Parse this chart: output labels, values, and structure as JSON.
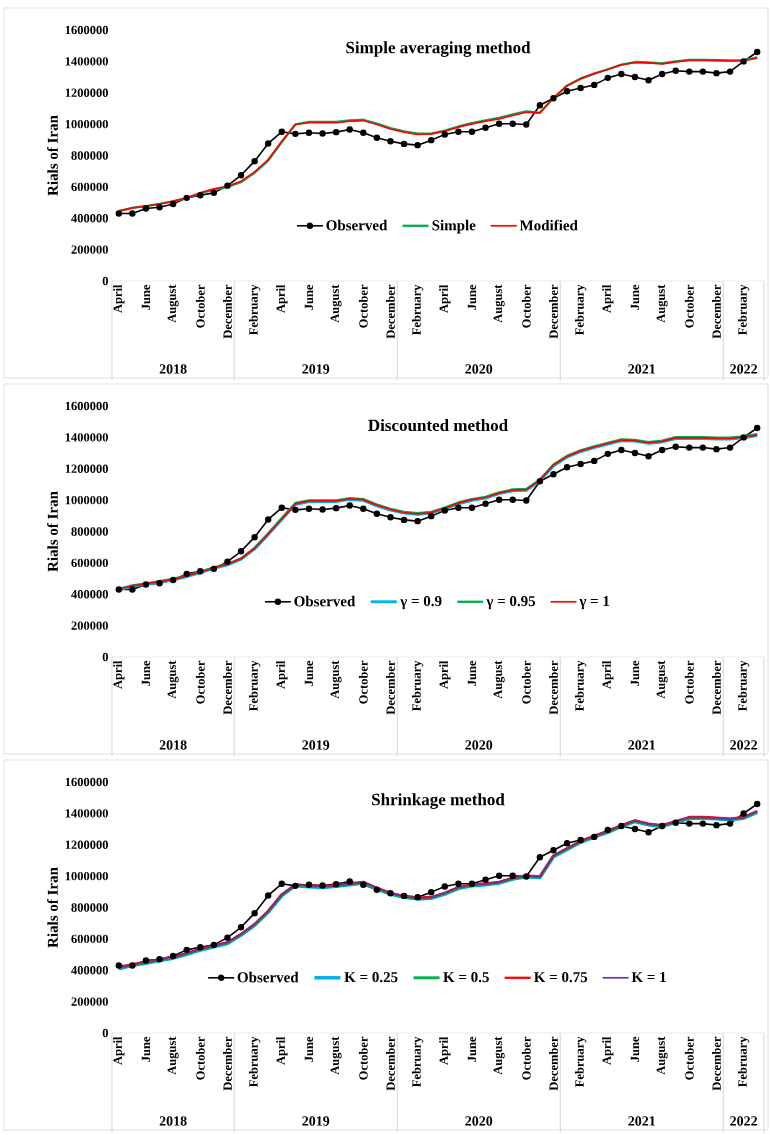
{
  "chart_data": [
    {
      "type": "line",
      "title": "Simple averaging method",
      "ylabel": "Rials of Iran",
      "x": [
        "2018-04",
        "2018-05",
        "2018-06",
        "2018-07",
        "2018-08",
        "2018-09",
        "2018-10",
        "2018-11",
        "2018-12",
        "2019-01",
        "2019-02",
        "2019-03",
        "2019-04",
        "2019-05",
        "2019-06",
        "2019-07",
        "2019-08",
        "2019-09",
        "2019-10",
        "2019-11",
        "2019-12",
        "2020-01",
        "2020-02",
        "2020-03",
        "2020-04",
        "2020-05",
        "2020-06",
        "2020-07",
        "2020-08",
        "2020-09",
        "2020-10",
        "2020-11",
        "2020-12",
        "2021-01",
        "2021-02",
        "2021-03",
        "2021-04",
        "2021-05",
        "2021-06",
        "2021-07",
        "2021-08",
        "2021-09",
        "2021-10",
        "2021-11",
        "2021-12",
        "2022-01",
        "2022-02",
        "2022-03"
      ],
      "xlim": [
        "2018-03-16",
        "2022-03-16"
      ],
      "xticks": [
        {
          "value": "2018-04",
          "label": "April"
        },
        {
          "value": "2018-06",
          "label": "June"
        },
        {
          "value": "2018-08",
          "label": "August"
        },
        {
          "value": "2018-10",
          "label": "October"
        },
        {
          "value": "2018-12",
          "label": "December"
        },
        {
          "value": "2019-02",
          "label": "February"
        },
        {
          "value": "2019-04",
          "label": "April"
        },
        {
          "value": "2019-06",
          "label": "June"
        },
        {
          "value": "2019-08",
          "label": "August"
        },
        {
          "value": "2019-10",
          "label": "October"
        },
        {
          "value": "2019-12",
          "label": "December"
        },
        {
          "value": "2020-02",
          "label": "February"
        },
        {
          "value": "2020-04",
          "label": "April"
        },
        {
          "value": "2020-06",
          "label": "June"
        },
        {
          "value": "2020-08",
          "label": "August"
        },
        {
          "value": "2020-10",
          "label": "October"
        },
        {
          "value": "2020-12",
          "label": "December"
        },
        {
          "value": "2021-02",
          "label": "February"
        },
        {
          "value": "2021-04",
          "label": "April"
        },
        {
          "value": "2021-06",
          "label": "June"
        },
        {
          "value": "2021-08",
          "label": "August"
        },
        {
          "value": "2021-10",
          "label": "October"
        },
        {
          "value": "2021-12",
          "label": "December"
        },
        {
          "value": "2022-02",
          "label": "February"
        }
      ],
      "ylim": [
        0,
        1600000
      ],
      "yticks": [
        0,
        200000,
        400000,
        600000,
        800000,
        1000000,
        1200000,
        1400000,
        1600000
      ],
      "legend": "bottom",
      "annotations": [
        "2018",
        "2019",
        "2020",
        "2021",
        "2022"
      ],
      "series": [
        {
          "name": "Observed",
          "color": "#000000",
          "marker": "circle",
          "values": [
            430000,
            430000,
            462000,
            470000,
            491000,
            530000,
            547000,
            562000,
            608000,
            674000,
            764000,
            877000,
            951000,
            938000,
            945000,
            940000,
            949000,
            966000,
            945000,
            913000,
            891000,
            874000,
            866000,
            898000,
            934000,
            951000,
            951000,
            977000,
            1002000,
            1002000,
            998000,
            1120000,
            1165000,
            1210000,
            1230000,
            1250000,
            1295000,
            1320000,
            1300000,
            1280000,
            1320000,
            1340000,
            1335000,
            1335000,
            1325000,
            1335000,
            1400000,
            1460000
          ]
        },
        {
          "name": "Simple",
          "color": "#00b050",
          "values": [
            445000,
            466000,
            477000,
            491000,
            507000,
            528000,
            558000,
            583000,
            600000,
            630000,
            690000,
            768000,
            885000,
            998000,
            1014000,
            1014000,
            1014000,
            1024000,
            1028000,
            1003000,
            975000,
            954000,
            939000,
            940000,
            958000,
            985000,
            1007000,
            1024000,
            1040000,
            1062000,
            1082000,
            1072000,
            1165000,
            1245000,
            1290000,
            1322000,
            1350000,
            1380000,
            1396000,
            1393000,
            1387000,
            1400000,
            1410000,
            1410000,
            1408000,
            1406000,
            1408000,
            1425000
          ]
        },
        {
          "name": "Modified",
          "color": "#ff0000",
          "values": [
            445000,
            466000,
            477000,
            491000,
            509000,
            530000,
            562000,
            587000,
            604000,
            636000,
            696000,
            774000,
            891000,
            998000,
            1009000,
            1009000,
            1009000,
            1019000,
            1023000,
            998000,
            970000,
            949000,
            934000,
            938000,
            955000,
            981000,
            1002000,
            1019000,
            1034000,
            1055000,
            1077000,
            1072000,
            1168000,
            1245000,
            1290000,
            1322000,
            1348000,
            1378000,
            1393000,
            1390000,
            1384000,
            1397000,
            1407000,
            1407000,
            1405000,
            1403000,
            1405000,
            1420000
          ]
        }
      ]
    },
    {
      "type": "line",
      "title": "Discounted method",
      "ylabel": "Rials of Iran",
      "x": [
        "2018-04",
        "2018-05",
        "2018-06",
        "2018-07",
        "2018-08",
        "2018-09",
        "2018-10",
        "2018-11",
        "2018-12",
        "2019-01",
        "2019-02",
        "2019-03",
        "2019-04",
        "2019-05",
        "2019-06",
        "2019-07",
        "2019-08",
        "2019-09",
        "2019-10",
        "2019-11",
        "2019-12",
        "2020-01",
        "2020-02",
        "2020-03",
        "2020-04",
        "2020-05",
        "2020-06",
        "2020-07",
        "2020-08",
        "2020-09",
        "2020-10",
        "2020-11",
        "2020-12",
        "2021-01",
        "2021-02",
        "2021-03",
        "2021-04",
        "2021-05",
        "2021-06",
        "2021-07",
        "2021-08",
        "2021-09",
        "2021-10",
        "2021-11",
        "2021-12",
        "2022-01",
        "2022-02",
        "2022-03"
      ],
      "xlim": [
        "2018-03-16",
        "2022-03-16"
      ],
      "xticks": [
        {
          "value": "2018-04",
          "label": "April"
        },
        {
          "value": "2018-06",
          "label": "June"
        },
        {
          "value": "2018-08",
          "label": "August"
        },
        {
          "value": "2018-10",
          "label": "October"
        },
        {
          "value": "2018-12",
          "label": "December"
        },
        {
          "value": "2019-02",
          "label": "February"
        },
        {
          "value": "2019-04",
          "label": "April"
        },
        {
          "value": "2019-06",
          "label": "June"
        },
        {
          "value": "2019-08",
          "label": "August"
        },
        {
          "value": "2019-10",
          "label": "October"
        },
        {
          "value": "2019-12",
          "label": "December"
        },
        {
          "value": "2020-02",
          "label": "February"
        },
        {
          "value": "2020-04",
          "label": "April"
        },
        {
          "value": "2020-06",
          "label": "June"
        },
        {
          "value": "2020-08",
          "label": "August"
        },
        {
          "value": "2020-10",
          "label": "October"
        },
        {
          "value": "2020-12",
          "label": "December"
        },
        {
          "value": "2021-02",
          "label": "February"
        },
        {
          "value": "2021-04",
          "label": "April"
        },
        {
          "value": "2021-06",
          "label": "June"
        },
        {
          "value": "2021-08",
          "label": "August"
        },
        {
          "value": "2021-10",
          "label": "October"
        },
        {
          "value": "2021-12",
          "label": "December"
        },
        {
          "value": "2022-02",
          "label": "February"
        }
      ],
      "ylim": [
        0,
        1600000
      ],
      "yticks": [
        0,
        200000,
        400000,
        600000,
        800000,
        1000000,
        1200000,
        1400000,
        1600000
      ],
      "legend": "bottom",
      "annotations": [
        "2018",
        "2019",
        "2020",
        "2021",
        "2022"
      ],
      "series": [
        {
          "name": "Observed",
          "color": "#000000",
          "marker": "circle",
          "values": [
            430000,
            430000,
            462000,
            470000,
            491000,
            530000,
            547000,
            562000,
            608000,
            674000,
            764000,
            877000,
            951000,
            938000,
            945000,
            940000,
            949000,
            966000,
            945000,
            913000,
            891000,
            874000,
            866000,
            898000,
            934000,
            951000,
            951000,
            977000,
            1002000,
            1002000,
            998000,
            1120000,
            1165000,
            1210000,
            1230000,
            1250000,
            1295000,
            1320000,
            1300000,
            1280000,
            1320000,
            1340000,
            1335000,
            1335000,
            1325000,
            1335000,
            1400000,
            1460000
          ]
        },
        {
          "name": "γ = 0.9",
          "color": "#00b0f0",
          "values": [
            428000,
            450000,
            463000,
            477000,
            491000,
            513000,
            538000,
            565000,
            587000,
            623000,
            689000,
            780000,
            876000,
            972000,
            991000,
            991000,
            991000,
            1005000,
            999000,
            964000,
            936000,
            917000,
            909000,
            917000,
            944000,
            977000,
            999000,
            1013000,
            1041000,
            1060000,
            1063000,
            1123000,
            1219000,
            1274000,
            1310000,
            1335000,
            1357000,
            1379000,
            1376000,
            1362000,
            1371000,
            1393000,
            1393000,
            1393000,
            1390000,
            1390000,
            1398000,
            1412000
          ]
        },
        {
          "name": "γ = 0.95",
          "color": "#00b050",
          "values": [
            434000,
            457000,
            470000,
            484000,
            498000,
            519000,
            544000,
            571000,
            593000,
            629000,
            696000,
            789000,
            886000,
            982000,
            999000,
            999000,
            999000,
            1013000,
            1007000,
            972000,
            944000,
            925000,
            917000,
            925000,
            952000,
            985000,
            1007000,
            1021000,
            1049000,
            1068000,
            1071000,
            1131000,
            1227000,
            1282000,
            1318000,
            1343000,
            1365000,
            1387000,
            1384000,
            1370000,
            1379000,
            1401000,
            1401000,
            1401000,
            1398000,
            1398000,
            1406000,
            1420000
          ]
        },
        {
          "name": "γ = 1",
          "color": "#ff0000",
          "values": [
            432000,
            454000,
            467000,
            481000,
            495000,
            517000,
            542000,
            569000,
            591000,
            627000,
            693000,
            784000,
            880000,
            976000,
            995000,
            995000,
            995000,
            1009000,
            1003000,
            968000,
            940000,
            921000,
            913000,
            921000,
            948000,
            981000,
            1003000,
            1017000,
            1045000,
            1064000,
            1067000,
            1127000,
            1223000,
            1278000,
            1314000,
            1339000,
            1361000,
            1383000,
            1380000,
            1366000,
            1375000,
            1397000,
            1397000,
            1397000,
            1394000,
            1394000,
            1402000,
            1416000
          ]
        }
      ]
    },
    {
      "type": "line",
      "title": "Shrinkage method",
      "ylabel": "Rials of Iran",
      "x": [
        "2018-04",
        "2018-05",
        "2018-06",
        "2018-07",
        "2018-08",
        "2018-09",
        "2018-10",
        "2018-11",
        "2018-12",
        "2019-01",
        "2019-02",
        "2019-03",
        "2019-04",
        "2019-05",
        "2019-06",
        "2019-07",
        "2019-08",
        "2019-09",
        "2019-10",
        "2019-11",
        "2019-12",
        "2020-01",
        "2020-02",
        "2020-03",
        "2020-04",
        "2020-05",
        "2020-06",
        "2020-07",
        "2020-08",
        "2020-09",
        "2020-10",
        "2020-11",
        "2020-12",
        "2021-01",
        "2021-02",
        "2021-03",
        "2021-04",
        "2021-05",
        "2021-06",
        "2021-07",
        "2021-08",
        "2021-09",
        "2021-10",
        "2021-11",
        "2021-12",
        "2022-01",
        "2022-02",
        "2022-03"
      ],
      "xlim": [
        "2018-03-16",
        "2022-03-16"
      ],
      "xticks": [
        {
          "value": "2018-04",
          "label": "April"
        },
        {
          "value": "2018-06",
          "label": "June"
        },
        {
          "value": "2018-08",
          "label": "August"
        },
        {
          "value": "2018-10",
          "label": "October"
        },
        {
          "value": "2018-12",
          "label": "December"
        },
        {
          "value": "2019-02",
          "label": "February"
        },
        {
          "value": "2019-04",
          "label": "April"
        },
        {
          "value": "2019-06",
          "label": "June"
        },
        {
          "value": "2019-08",
          "label": "August"
        },
        {
          "value": "2019-10",
          "label": "October"
        },
        {
          "value": "2019-12",
          "label": "December"
        },
        {
          "value": "2020-02",
          "label": "February"
        },
        {
          "value": "2020-04",
          "label": "April"
        },
        {
          "value": "2020-06",
          "label": "June"
        },
        {
          "value": "2020-08",
          "label": "August"
        },
        {
          "value": "2020-10",
          "label": "October"
        },
        {
          "value": "2020-12",
          "label": "December"
        },
        {
          "value": "2021-02",
          "label": "February"
        },
        {
          "value": "2021-04",
          "label": "April"
        },
        {
          "value": "2021-06",
          "label": "June"
        },
        {
          "value": "2021-08",
          "label": "August"
        },
        {
          "value": "2021-10",
          "label": "October"
        },
        {
          "value": "2021-12",
          "label": "December"
        },
        {
          "value": "2022-02",
          "label": "February"
        }
      ],
      "ylim": [
        0,
        1600000
      ],
      "yticks": [
        0,
        200000,
        400000,
        600000,
        800000,
        1000000,
        1200000,
        1400000,
        1600000
      ],
      "legend": "bottom",
      "annotations": [
        "2018",
        "2019",
        "2020",
        "2021",
        "2022"
      ],
      "series": [
        {
          "name": "Observed",
          "color": "#000000",
          "marker": "circle",
          "values": [
            430000,
            430000,
            462000,
            470000,
            491000,
            530000,
            547000,
            562000,
            608000,
            674000,
            764000,
            877000,
            951000,
            938000,
            945000,
            940000,
            949000,
            966000,
            945000,
            913000,
            891000,
            874000,
            866000,
            898000,
            934000,
            951000,
            951000,
            977000,
            1002000,
            1002000,
            998000,
            1120000,
            1165000,
            1210000,
            1230000,
            1250000,
            1295000,
            1320000,
            1300000,
            1280000,
            1320000,
            1340000,
            1335000,
            1335000,
            1325000,
            1335000,
            1400000,
            1460000
          ]
        },
        {
          "name": "K = 0.25",
          "color": "#00b0f0",
          "values": [
            410000,
            431000,
            445000,
            462000,
            477000,
            502000,
            529000,
            550000,
            571000,
            624000,
            687000,
            771000,
            876000,
            939000,
            933000,
            928000,
            935000,
            945000,
            956000,
            918000,
            886000,
            865000,
            855000,
            859000,
            886000,
            922000,
            939000,
            945000,
            956000,
            981000,
            996000,
            991000,
            1124000,
            1170000,
            1216000,
            1250000,
            1279000,
            1317000,
            1348000,
            1327000,
            1317000,
            1342000,
            1369000,
            1369000,
            1365000,
            1359000,
            1369000,
            1407000
          ]
        },
        {
          "name": "K = 0.5",
          "color": "#00b050",
          "values": [
            412000,
            433000,
            447000,
            464000,
            479000,
            504000,
            531000,
            552000,
            573000,
            626000,
            689000,
            773000,
            878000,
            941000,
            935000,
            930000,
            937000,
            947000,
            958000,
            920000,
            888000,
            867000,
            857000,
            861000,
            888000,
            924000,
            941000,
            947000,
            958000,
            983000,
            998000,
            993000,
            1126000,
            1172000,
            1218000,
            1252000,
            1281000,
            1319000,
            1350000,
            1329000,
            1319000,
            1344000,
            1371000,
            1371000,
            1367000,
            1361000,
            1371000,
            1409000
          ]
        },
        {
          "name": "K = 0.75",
          "color": "#ff0000",
          "values": [
            418000,
            439000,
            453000,
            470000,
            485000,
            510000,
            537000,
            558000,
            579000,
            632000,
            695000,
            779000,
            884000,
            947000,
            941000,
            936000,
            943000,
            953000,
            964000,
            926000,
            894000,
            873000,
            863000,
            867000,
            894000,
            930000,
            947000,
            953000,
            964000,
            989000,
            1004000,
            999000,
            1132000,
            1178000,
            1224000,
            1258000,
            1287000,
            1325000,
            1356000,
            1335000,
            1325000,
            1350000,
            1377000,
            1377000,
            1373000,
            1367000,
            1377000,
            1415000
          ]
        },
        {
          "name": "K = 1",
          "color": "#7030a0",
          "values": [
            416000,
            437000,
            451000,
            468000,
            483000,
            508000,
            535000,
            556000,
            577000,
            630000,
            693000,
            777000,
            882000,
            945000,
            939000,
            934000,
            941000,
            951000,
            962000,
            924000,
            892000,
            871000,
            861000,
            865000,
            892000,
            928000,
            945000,
            951000,
            962000,
            987000,
            1002000,
            997000,
            1130000,
            1176000,
            1222000,
            1256000,
            1285000,
            1323000,
            1354000,
            1333000,
            1323000,
            1348000,
            1375000,
            1375000,
            1371000,
            1365000,
            1375000,
            1413000
          ]
        }
      ]
    }
  ]
}
